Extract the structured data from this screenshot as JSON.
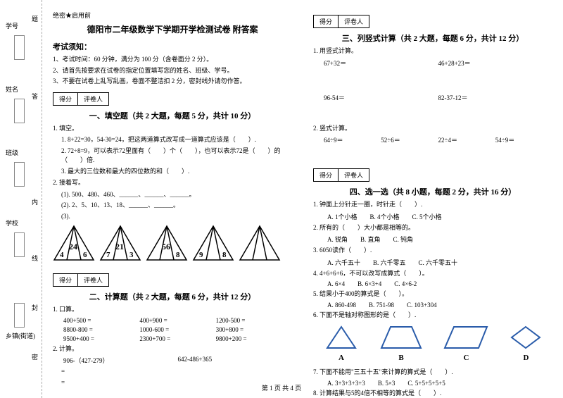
{
  "margin": {
    "labels": [
      "学号",
      "姓名",
      "班级",
      "学校",
      "乡镇(街道)"
    ],
    "side_chars": [
      "题",
      "答",
      "内",
      "线",
      "封",
      "密"
    ],
    "side_note": "密"
  },
  "header": {
    "tag": "绝密★启用前",
    "title": "德阳市二年级数学下学期开学检测试卷 附答案",
    "notice_title": "考试须知：",
    "notices": [
      "1、考试时间：60 分钟，满分为 100 分（含卷面分 2 分）。",
      "2、请首先按要求在试卷的指定位置填写您的姓名、班级、学号。",
      "3、不要在试卷上乱写乱画，卷面不整洁扣 2 分，密封线外请勿作答。"
    ]
  },
  "scorebox": {
    "c1": "得分",
    "c2": "评卷人"
  },
  "sec1": {
    "title": "一、填空题（共 2 大题，每题 5 分，共计 10 分）",
    "q1": "1. 填空。",
    "q1_1": "1. 8+22=30，54-30=24，把这两道算式改写成一道算式应该是（　　）.",
    "q1_2": "2. 72÷8=9，可以表示72里面有（　　）个（　　），也可以表示72是（　　）的（　　）倍.",
    "q1_3": "3. 最大的三位数和最大的四位数的和（　　）.",
    "q2": "2. 接着写。",
    "q2_1": "(1). 500、480、460、______、______、______。",
    "q2_2": "(2). 2、5、10、13、18、______、______。",
    "q2_3": "(3)."
  },
  "triangles_data": [
    {
      "left": "4",
      "mid": "24",
      "right": "6"
    },
    {
      "left": "7",
      "mid": "21",
      "right": "3"
    },
    {
      "left": "",
      "mid": "56",
      "right": "8"
    },
    {
      "left": "9",
      "mid": "",
      "right": "8"
    },
    {
      "left": "",
      "mid": "",
      "right": ""
    }
  ],
  "sec2": {
    "title": "二、计算题（共 2 大题，每题 6 分，共计 12 分）",
    "q1": "1. 口算。",
    "rows": [
      [
        "400+500 =",
        "400+900 =",
        "1200-500 ="
      ],
      [
        "8800-800 =",
        "1000-600 =",
        "300+800 ="
      ],
      [
        "9500+400 =",
        "2300+700 =",
        "9800+200 ="
      ]
    ],
    "q2": "2. 计算。",
    "q2_1": "906-（427-279）",
    "q2_2": "642-486+365",
    "eq": "="
  },
  "sec3": {
    "title": "三、列竖式计算（共 2 大题，每题 6 分，共计 12 分）",
    "q1": "1. 用竖式计算。",
    "r1a": "67+32＝",
    "r1b": "46+28+23＝",
    "r2a": "96-54＝",
    "r2b": "82-37-12＝",
    "q2": "2. 竖式计算。",
    "r3": [
      "64÷9＝",
      "52÷6＝",
      "22÷4＝",
      "54÷9＝"
    ]
  },
  "sec4": {
    "title": "四、选一选（共 8 小题，每题 2 分，共计 16 分）",
    "q1": "1. 钟面上分针走一圈，时针走（　　）.",
    "q1o": [
      "A. 1个小格",
      "B. 4个小格",
      "C. 5个小格"
    ],
    "q2": "2. 所有的（　　）大小都是相等的。",
    "q2o": [
      "A. 锐角",
      "B. 直角",
      "C. 钝角"
    ],
    "q3": "3. 6050读作（　　）.",
    "q3o": [
      "A. 六千五十",
      "B. 六千零五",
      "C. 六千零五十"
    ],
    "q4": "4. 4+6+6+6，不可以改写成算式（　　）。",
    "q4o": [
      "A. 6×4",
      "B. 6×3+4",
      "C. 4×6-2"
    ],
    "q5": "5. 结果小于400的算式是（　　）。",
    "q5o": [
      "A. 860-498",
      "B. 751-98",
      "C. 103+304"
    ],
    "q6": "6. 下面不是轴对称图形的是（　　）.",
    "shape_labels": [
      "A",
      "B",
      "C",
      "D"
    ],
    "q7": "7. 下面不能用\"三五十五\"来计算的算式是（　　）.",
    "q7o": [
      "A. 3+3+3+3+3",
      "B. 5×3",
      "C. 5+5+5+5+5"
    ],
    "q8": "8. 计算结果与5的4倍不相等的算式是（　　）."
  },
  "footer": "第 1 页 共 4 页"
}
